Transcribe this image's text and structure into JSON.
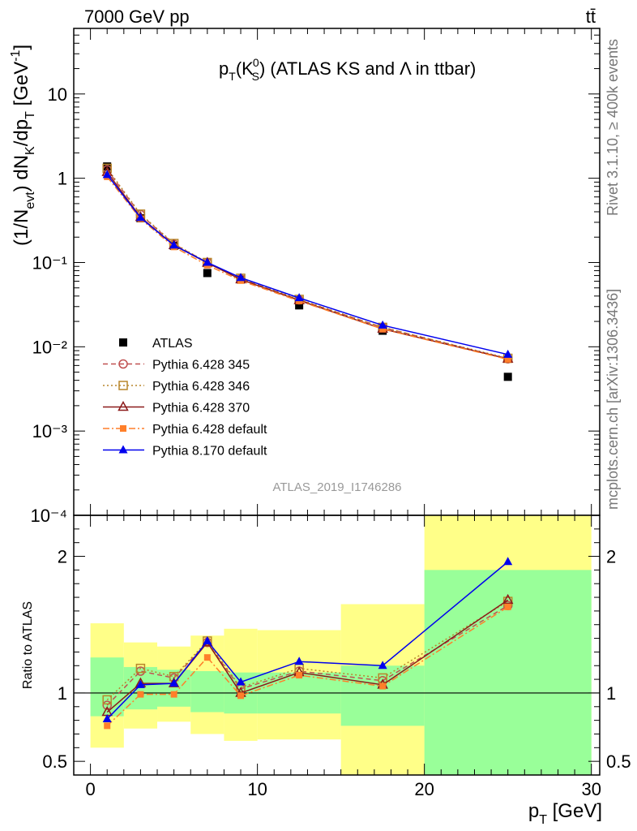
{
  "header": {
    "left_label": "7000 GeV pp",
    "right_label": "tt̄"
  },
  "side_labels": {
    "rivet": "Rivet 3.1.10, ≥ 400k events",
    "mcplots": "mcplots.cern.ch [arXiv:1306.3436]"
  },
  "chart_data": [
    {
      "type": "scatter",
      "panel": "main",
      "title": "p_T(K⁰_S) (ATLAS KS and Λ in ttbar)",
      "ylabel": "(1/N_evt) dN_K/dp_T [GeV⁻¹]",
      "xlabel": "",
      "ylim": [
        0.0001,
        60
      ],
      "xlim": [
        -1,
        30.5
      ],
      "y_scale": "log",
      "y_tick_labels": [
        "10",
        "1",
        "10⁻¹",
        "10⁻²",
        "10⁻³",
        "10⁻⁴"
      ],
      "analysis_label": "ATLAS_2019_I1746286",
      "legend_placement": "lower-left",
      "x": [
        1,
        3,
        5,
        7,
        9,
        12.5,
        17.5,
        25
      ],
      "series": [
        {
          "name": "ATLAS",
          "color": "#000000",
          "marker": "filled-square",
          "line": "none",
          "values": [
            1.38,
            0.335,
            0.158,
            0.075,
            0.063,
            0.031,
            0.0155,
            0.0044
          ]
        },
        {
          "name": "Pythia 6.428 345",
          "color": "#c05050",
          "marker": "open-circle",
          "line": "dashed",
          "values": [
            1.26,
            0.37,
            0.165,
            0.1,
            0.064,
            0.036,
            0.017,
            0.0072
          ]
        },
        {
          "name": "Pythia 6.428 346",
          "color": "#b8862b",
          "marker": "open-square",
          "line": "dotted",
          "values": [
            1.31,
            0.375,
            0.168,
            0.1,
            0.065,
            0.0365,
            0.017,
            0.0073
          ]
        },
        {
          "name": "Pythia 6.428 370",
          "color": "#8b1a1a",
          "marker": "open-triangle",
          "line": "solid",
          "values": [
            1.18,
            0.345,
            0.16,
            0.099,
            0.063,
            0.0355,
            0.0163,
            0.0072
          ]
        },
        {
          "name": "Pythia 6.428 default",
          "color": "#ff7f2a",
          "marker": "filled-square-small",
          "line": "dashdot",
          "values": [
            1.04,
            0.33,
            0.153,
            0.093,
            0.061,
            0.035,
            0.0162,
            0.0071
          ]
        },
        {
          "name": "Pythia 8.170 default",
          "color": "#0000ee",
          "marker": "filled-triangle",
          "line": "solid",
          "values": [
            1.1,
            0.34,
            0.16,
            0.1,
            0.066,
            0.038,
            0.018,
            0.0081
          ]
        }
      ]
    },
    {
      "type": "scatter",
      "panel": "ratio",
      "ylabel": "Ratio to ATLAS",
      "xlabel": "p_T [GeV]",
      "ylim": [
        0.4,
        2.3
      ],
      "xlim": [
        -1,
        30.5
      ],
      "y_tick_labels": [
        "0.5",
        "1",
        "2"
      ],
      "x_tick_labels": [
        "0",
        "10",
        "20",
        "30"
      ],
      "reference_line": 1,
      "bands": {
        "bin_edges": [
          0,
          2,
          4,
          6,
          8,
          10,
          15,
          20,
          30
        ],
        "inner_lo": [
          0.83,
          0.88,
          0.9,
          0.86,
          0.85,
          0.85,
          0.76,
          0.38
        ],
        "inner_hi": [
          1.26,
          1.19,
          1.17,
          1.16,
          1.15,
          1.15,
          1.2,
          1.9
        ],
        "outer_lo": [
          0.6,
          0.74,
          0.79,
          0.7,
          0.65,
          0.66,
          0.38,
          0.38
        ],
        "outer_hi": [
          1.51,
          1.37,
          1.34,
          1.42,
          1.47,
          1.46,
          1.65,
          2.3
        ],
        "inner_color": "#99ff99",
        "outer_color": "#ffff88"
      },
      "x": [
        1,
        3,
        5,
        7,
        9,
        12.5,
        17.5,
        25
      ],
      "series": [
        {
          "name": "Pythia 6.428 345",
          "color": "#c05050",
          "marker": "open-circle",
          "line": "dashed",
          "values": [
            0.91,
            1.16,
            1.11,
            1.37,
            1.03,
            1.16,
            1.09,
            1.64
          ]
        },
        {
          "name": "Pythia 6.428 346",
          "color": "#b8862b",
          "marker": "open-square",
          "line": "dotted",
          "values": [
            0.95,
            1.18,
            1.12,
            1.38,
            1.04,
            1.18,
            1.11,
            1.67
          ]
        },
        {
          "name": "Pythia 6.428 370",
          "color": "#8b1a1a",
          "marker": "open-triangle",
          "line": "solid",
          "values": [
            0.86,
            1.07,
            1.07,
            1.37,
            1.0,
            1.15,
            1.06,
            1.68
          ]
        },
        {
          "name": "Pythia 6.428 default",
          "color": "#ff7f2a",
          "marker": "filled-square-small",
          "line": "dashdot",
          "values": [
            0.76,
            0.99,
            0.99,
            1.26,
            0.98,
            1.13,
            1.05,
            1.63
          ]
        },
        {
          "name": "Pythia 8.170 default",
          "color": "#0000ee",
          "marker": "filled-triangle",
          "line": "solid",
          "values": [
            0.81,
            1.06,
            1.07,
            1.38,
            1.08,
            1.23,
            1.2,
            1.96
          ]
        }
      ]
    }
  ]
}
